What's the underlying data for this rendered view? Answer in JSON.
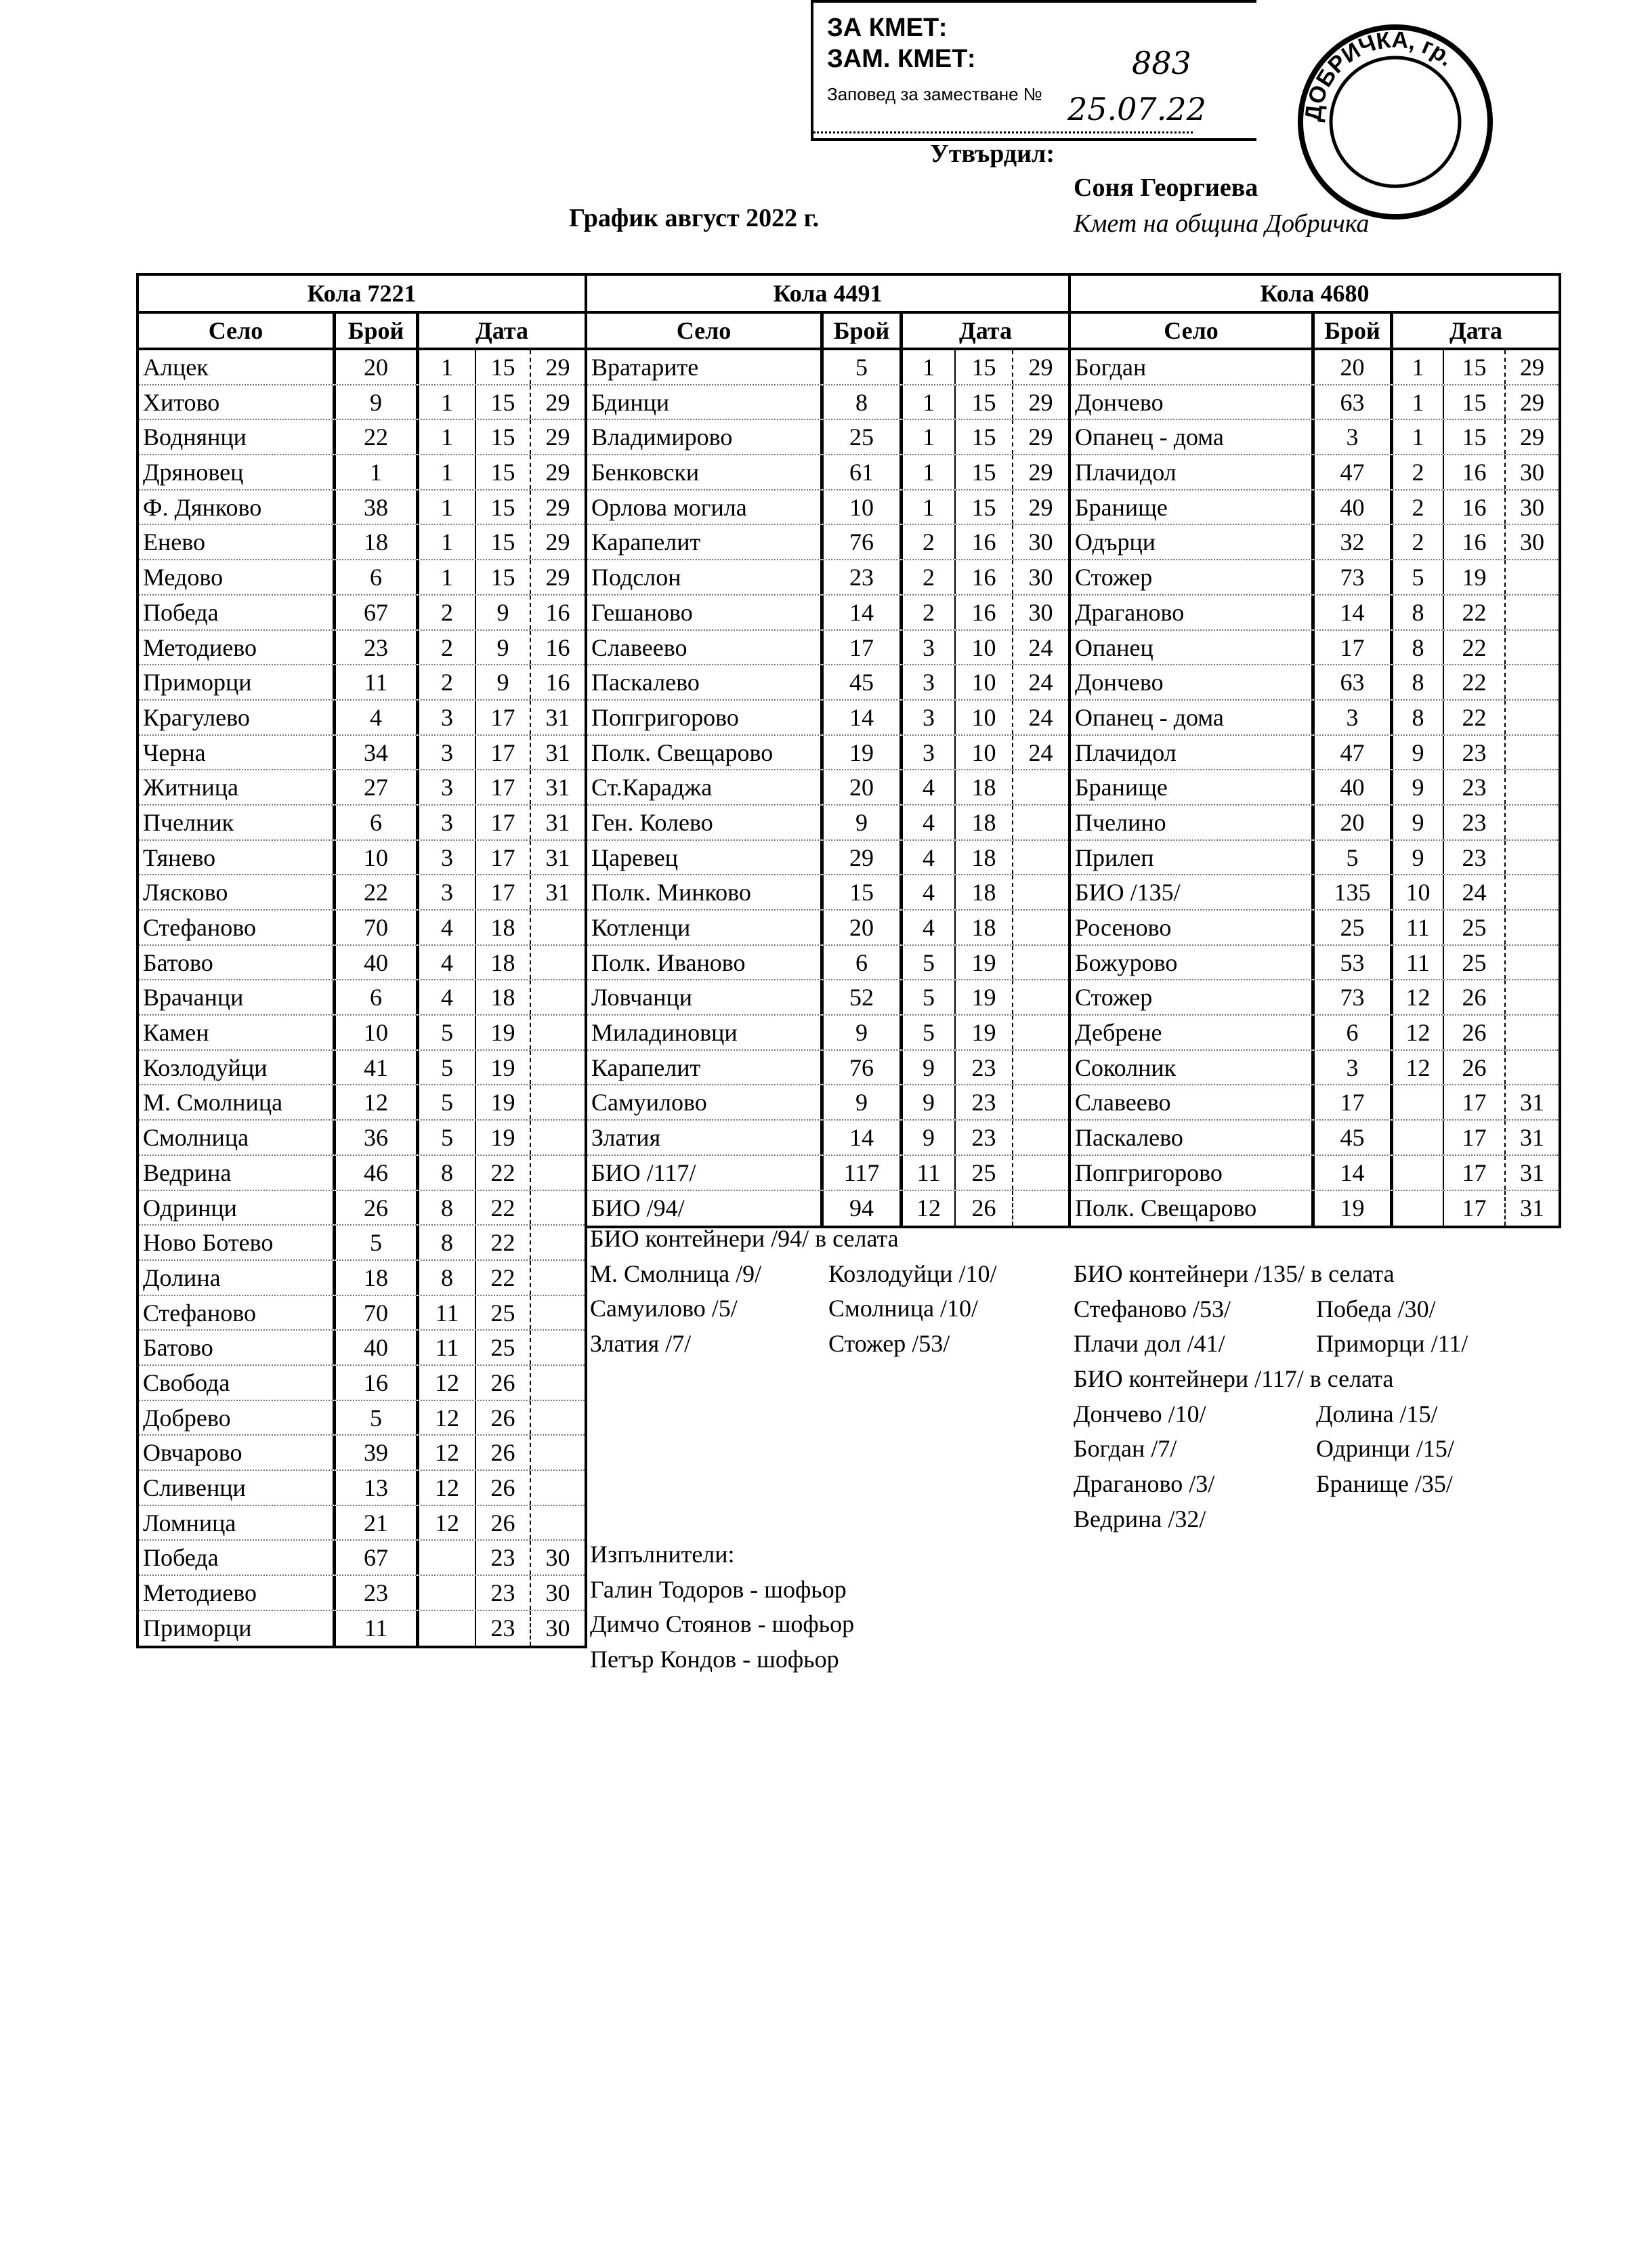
{
  "stamp": {
    "line1": "ЗА КМЕТ:",
    "line2": "ЗАМ. КМЕТ:",
    "line3": "Заповед за заместване №",
    "order_number": "883",
    "date": "25.07.22",
    "seal_text": "ДОБРИЧКА, гр. ДОБРИЧ"
  },
  "approval": {
    "label": "Утвърдил:",
    "name": "Соня Георгиева",
    "role": "Кмет на община Добричка"
  },
  "title": "График август 2022 г.",
  "columns": {
    "village": "Село",
    "count": "Брой",
    "date": "Дата"
  },
  "vehicles": [
    {
      "name": "Кола 7221",
      "rows": [
        [
          "Алцек",
          "20",
          "1",
          "15",
          "29"
        ],
        [
          "Хитово",
          "9",
          "1",
          "15",
          "29"
        ],
        [
          "Воднянци",
          "22",
          "1",
          "15",
          "29"
        ],
        [
          "Дряновец",
          "1",
          "1",
          "15",
          "29"
        ],
        [
          "Ф. Дянково",
          "38",
          "1",
          "15",
          "29"
        ],
        [
          "Енево",
          "18",
          "1",
          "15",
          "29"
        ],
        [
          "Медово",
          "6",
          "1",
          "15",
          "29"
        ],
        [
          "Победа",
          "67",
          "2",
          "9",
          "16"
        ],
        [
          "Методиево",
          "23",
          "2",
          "9",
          "16"
        ],
        [
          "Приморци",
          "11",
          "2",
          "9",
          "16"
        ],
        [
          "Крагулево",
          "4",
          "3",
          "17",
          "31"
        ],
        [
          "Черна",
          "34",
          "3",
          "17",
          "31"
        ],
        [
          "Житница",
          "27",
          "3",
          "17",
          "31"
        ],
        [
          "Пчелник",
          "6",
          "3",
          "17",
          "31"
        ],
        [
          "Тянево",
          "10",
          "3",
          "17",
          "31"
        ],
        [
          "Лясково",
          "22",
          "3",
          "17",
          "31"
        ],
        [
          "Стефаново",
          "70",
          "4",
          "18",
          ""
        ],
        [
          "Батово",
          "40",
          "4",
          "18",
          ""
        ],
        [
          "Врачанци",
          "6",
          "4",
          "18",
          ""
        ],
        [
          "Камен",
          "10",
          "5",
          "19",
          ""
        ],
        [
          "Козлодуйци",
          "41",
          "5",
          "19",
          ""
        ],
        [
          "М. Смолница",
          "12",
          "5",
          "19",
          ""
        ],
        [
          "Смолница",
          "36",
          "5",
          "19",
          ""
        ],
        [
          "Ведрина",
          "46",
          "8",
          "22",
          ""
        ],
        [
          "Одринци",
          "26",
          "8",
          "22",
          ""
        ],
        [
          "Ново Ботево",
          "5",
          "8",
          "22",
          ""
        ],
        [
          "Долина",
          "18",
          "8",
          "22",
          ""
        ],
        [
          "Стефаново",
          "70",
          "11",
          "25",
          ""
        ],
        [
          "Батово",
          "40",
          "11",
          "25",
          ""
        ],
        [
          "Свобода",
          "16",
          "12",
          "26",
          ""
        ],
        [
          "Добрево",
          "5",
          "12",
          "26",
          ""
        ],
        [
          "Овчарово",
          "39",
          "12",
          "26",
          ""
        ],
        [
          "Сливенци",
          "13",
          "12",
          "26",
          ""
        ],
        [
          "Ломница",
          "21",
          "12",
          "26",
          ""
        ],
        [
          "Победа",
          "67",
          "",
          "23",
          "30"
        ],
        [
          "Методиево",
          "23",
          "",
          "23",
          "30"
        ],
        [
          "Приморци",
          "11",
          "",
          "23",
          "30"
        ]
      ]
    },
    {
      "name": "Кола 4491",
      "rows": [
        [
          "Вратарите",
          "5",
          "1",
          "15",
          "29"
        ],
        [
          "Бдинци",
          "8",
          "1",
          "15",
          "29"
        ],
        [
          "Владимирово",
          "25",
          "1",
          "15",
          "29"
        ],
        [
          "Бенковски",
          "61",
          "1",
          "15",
          "29"
        ],
        [
          "Орлова могила",
          "10",
          "1",
          "15",
          "29"
        ],
        [
          "Карапелит",
          "76",
          "2",
          "16",
          "30"
        ],
        [
          "Подслон",
          "23",
          "2",
          "16",
          "30"
        ],
        [
          "Гешаново",
          "14",
          "2",
          "16",
          "30"
        ],
        [
          "Славеево",
          "17",
          "3",
          "10",
          "24"
        ],
        [
          "Паскалево",
          "45",
          "3",
          "10",
          "24"
        ],
        [
          "Попгригорово",
          "14",
          "3",
          "10",
          "24"
        ],
        [
          "Полк. Свещарово",
          "19",
          "3",
          "10",
          "24"
        ],
        [
          "Ст.Караджа",
          "20",
          "4",
          "18",
          ""
        ],
        [
          "Ген. Колево",
          "9",
          "4",
          "18",
          ""
        ],
        [
          "Царевец",
          "29",
          "4",
          "18",
          ""
        ],
        [
          "Полк. Минково",
          "15",
          "4",
          "18",
          ""
        ],
        [
          "Котленци",
          "20",
          "4",
          "18",
          ""
        ],
        [
          "Полк. Иваново",
          "6",
          "5",
          "19",
          ""
        ],
        [
          "Ловчанци",
          "52",
          "5",
          "19",
          ""
        ],
        [
          "Миладиновци",
          "9",
          "5",
          "19",
          ""
        ],
        [
          "Карапелит",
          "76",
          "9",
          "23",
          ""
        ],
        [
          "Самуилово",
          "9",
          "9",
          "23",
          ""
        ],
        [
          "Златия",
          "14",
          "9",
          "23",
          ""
        ],
        [
          "БИО /117/",
          "117",
          "11",
          "25",
          ""
        ],
        [
          "БИО /94/",
          "94",
          "12",
          "26",
          ""
        ]
      ]
    },
    {
      "name": "Кола 4680",
      "rows": [
        [
          "Богдан",
          "20",
          "1",
          "15",
          "29"
        ],
        [
          "Дончево",
          "63",
          "1",
          "15",
          "29"
        ],
        [
          "Опанец - дома",
          "3",
          "1",
          "15",
          "29"
        ],
        [
          "Плачидол",
          "47",
          "2",
          "16",
          "30"
        ],
        [
          "Бранище",
          "40",
          "2",
          "16",
          "30"
        ],
        [
          "Одърци",
          "32",
          "2",
          "16",
          "30"
        ],
        [
          "Стожер",
          "73",
          "5",
          "19",
          ""
        ],
        [
          "Драганово",
          "14",
          "8",
          "22",
          ""
        ],
        [
          "Опанец",
          "17",
          "8",
          "22",
          ""
        ],
        [
          "Дончево",
          "63",
          "8",
          "22",
          ""
        ],
        [
          "Опанец - дома",
          "3",
          "8",
          "22",
          ""
        ],
        [
          "Плачидол",
          "47",
          "9",
          "23",
          ""
        ],
        [
          "Бранище",
          "40",
          "9",
          "23",
          ""
        ],
        [
          "Пчелино",
          "20",
          "9",
          "23",
          ""
        ],
        [
          "Прилеп",
          "5",
          "9",
          "23",
          ""
        ],
        [
          "БИО /135/",
          "135",
          "10",
          "24",
          ""
        ],
        [
          "Росеново",
          "25",
          "11",
          "25",
          ""
        ],
        [
          "Божурово",
          "53",
          "11",
          "25",
          ""
        ],
        [
          "Стожер",
          "73",
          "12",
          "26",
          ""
        ],
        [
          "Дебрене",
          "6",
          "12",
          "26",
          ""
        ],
        [
          "Соколник",
          "3",
          "12",
          "26",
          ""
        ],
        [
          "Славеево",
          "17",
          "",
          "17",
          "31"
        ],
        [
          "Паскалево",
          "45",
          "",
          "17",
          "31"
        ],
        [
          "Попгригорово",
          "14",
          "",
          "17",
          "31"
        ],
        [
          "Полк. Свещарово",
          "19",
          "",
          "17",
          "31"
        ]
      ]
    }
  ],
  "notes_middle": [
    [
      "БИО контейнери /94/ в селата",
      ""
    ],
    [
      "М. Смолница /9/",
      "Козлодуйци /10/"
    ],
    [
      "Самуилово /5/",
      "Смолница /10/"
    ],
    [
      "Златия /7/",
      "Стожер /53/"
    ]
  ],
  "notes_right": [
    [
      "БИО контейнери /135/ в селата",
      ""
    ],
    [
      "Стефаново /53/",
      "Победа /30/"
    ],
    [
      "Плачи дол /41/",
      "Приморци /11/"
    ],
    [
      "БИО контейнери /117/ в селата",
      ""
    ],
    [
      "Дончево /10/",
      "Долина /15/"
    ],
    [
      "Богдан /7/",
      "Одринци /15/"
    ],
    [
      "Драганово /3/",
      "Бранище /35/"
    ],
    [
      "Ведрина /32/",
      ""
    ]
  ],
  "executors": {
    "label": "Изпълнители:",
    "people": [
      "Галин Тодоров - шофьор",
      "Димчо Стоянов - шофьор",
      "Петър Кондов - шофьор"
    ]
  }
}
